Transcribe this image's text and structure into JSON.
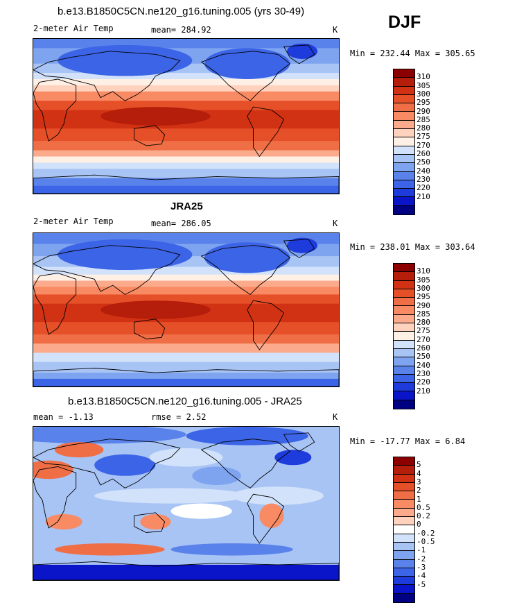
{
  "season": "DJF",
  "colors": {
    "temp": [
      "#000082",
      "#0a14c8",
      "#1e3cdc",
      "#3c64e6",
      "#5a82eb",
      "#7ea4f0",
      "#a8c4f5",
      "#d2e2fa",
      "#fff0e6",
      "#ffd2be",
      "#fcaa8c",
      "#f88a64",
      "#f06e46",
      "#e65028",
      "#d23214",
      "#b41e0a",
      "#8c0000"
    ],
    "diff": [
      "#000082",
      "#0a14c8",
      "#1e3cdc",
      "#3c64e6",
      "#5a82eb",
      "#7ea4f0",
      "#a8c4f5",
      "#d2e2fa",
      "#ffffff",
      "#ffd2be",
      "#fcaa8c",
      "#f88a64",
      "#f06e46",
      "#e65028",
      "#d23214",
      "#b41e0a",
      "#8c0000"
    ]
  },
  "chart_data": [
    {
      "type": "heatmap",
      "title": "b.e13.B1850C5CN.ne120_g16.tuning.005 (yrs 30-49)",
      "variable": "2-meter Air Temp",
      "mean_text": "mean= 284.92",
      "units": "K",
      "minmax_text": "Min = 232.44 Max = 305.65",
      "min": 232.44,
      "max": 305.65,
      "levels": [
        "310",
        "305",
        "300",
        "295",
        "290",
        "285",
        "280",
        "275",
        "270",
        "260",
        "250",
        "240",
        "230",
        "220",
        "210"
      ]
    },
    {
      "type": "heatmap",
      "title": "JRA25",
      "variable": "2-meter Air Temp",
      "mean_text": "mean= 286.05",
      "units": "K",
      "minmax_text": "Min = 238.01 Max = 303.64",
      "min": 238.01,
      "max": 303.64,
      "levels": [
        "310",
        "305",
        "300",
        "295",
        "290",
        "285",
        "280",
        "275",
        "270",
        "260",
        "250",
        "240",
        "230",
        "220",
        "210"
      ]
    },
    {
      "type": "heatmap",
      "title": "b.e13.B1850C5CN.ne120_g16.tuning.005 - JRA25",
      "mean_text": "mean =   -1.13",
      "rmse_text": "rmse =    2.52",
      "units": "K",
      "minmax_text": "Min = -17.77 Max =    6.84",
      "min": -17.77,
      "max": 6.84,
      "levels": [
        "5",
        "4",
        "3",
        "2",
        "1",
        "0.5",
        "0.2",
        "0",
        "-0.2",
        "-0.5",
        "-1",
        "-2",
        "-3",
        "-4",
        "-5"
      ]
    }
  ]
}
